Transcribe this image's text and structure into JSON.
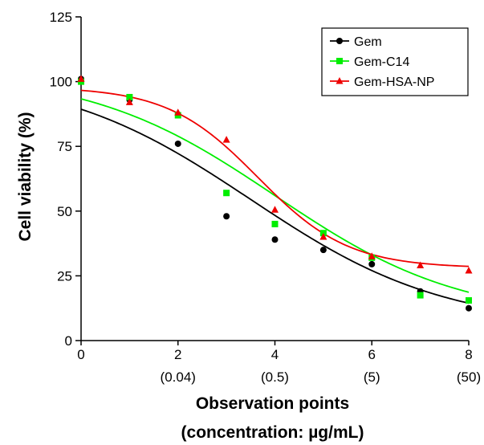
{
  "chart_data": {
    "type": "scatter",
    "xlabel": "Observation points",
    "xlabel_line2": "(concentration: µg/mL)",
    "ylabel": "Cell viability (%)",
    "xlim": [
      0,
      8
    ],
    "ylim": [
      0,
      125
    ],
    "grid": false,
    "legend_position": "top-right",
    "x_ticks": [
      {
        "value": 0,
        "label": "0",
        "sublabel": ""
      },
      {
        "value": 2,
        "label": "2",
        "sublabel": "(0.04)"
      },
      {
        "value": 4,
        "label": "4",
        "sublabel": "(0.5)"
      },
      {
        "value": 6,
        "label": "6",
        "sublabel": "(5)"
      },
      {
        "value": 8,
        "label": "8",
        "sublabel": "(50)"
      }
    ],
    "y_ticks": [
      {
        "value": 0,
        "label": "0"
      },
      {
        "value": 25,
        "label": "25"
      },
      {
        "value": 50,
        "label": "50"
      },
      {
        "value": 75,
        "label": "75"
      },
      {
        "value": 100,
        "label": "100"
      },
      {
        "value": 125,
        "label": "125"
      }
    ],
    "series": [
      {
        "name": "Gem",
        "color": "#000000",
        "marker": "circle",
        "x": [
          0,
          1,
          2,
          3,
          4,
          5,
          6,
          7,
          8
        ],
        "y": [
          101,
          93,
          76,
          48,
          39,
          35,
          29.5,
          19,
          12.5
        ],
        "curve": {
          "top": 104,
          "bottom": 5,
          "x50": 3.5,
          "slope": 0.5
        }
      },
      {
        "name": "Gem-C14",
        "color": "#00ee00",
        "marker": "square",
        "x": [
          0,
          1,
          2,
          3,
          4,
          5,
          6,
          7,
          8
        ],
        "y": [
          100,
          94,
          87,
          57,
          45,
          41.5,
          32,
          17.5,
          15.5
        ],
        "curve": {
          "top": 104,
          "bottom": 8,
          "x50": 4.0,
          "slope": 0.52
        }
      },
      {
        "name": "Gem-HSA-NP",
        "color": "#ee0000",
        "marker": "triangle",
        "x": [
          0,
          1,
          2,
          3,
          4,
          5,
          6,
          7,
          8
        ],
        "y": [
          101,
          92,
          88,
          77.5,
          50.5,
          40,
          32.5,
          29,
          27
        ],
        "curve": {
          "top": 98,
          "bottom": 28,
          "x50": 3.65,
          "slope": 1.07
        }
      }
    ]
  }
}
